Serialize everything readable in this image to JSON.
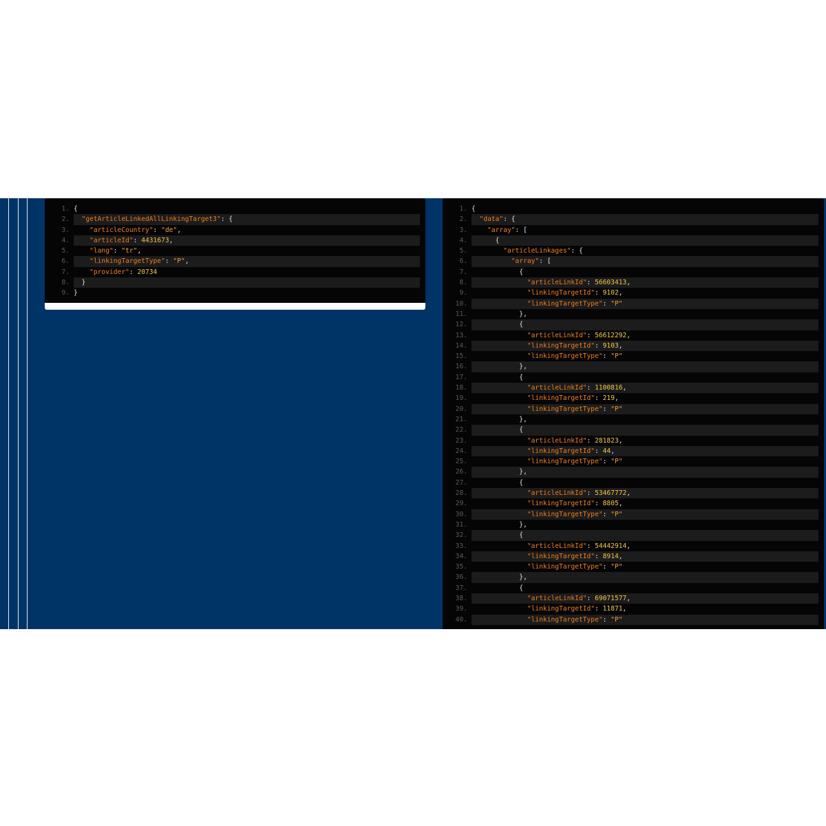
{
  "left_panel": {
    "lines": [
      {
        "number": "1.",
        "code": "{"
      },
      {
        "number": "2.",
        "code": "  \"getArticleLinkedAllLinkingTarget3\": {"
      },
      {
        "number": "3.",
        "code": "    \"articleCountry\": \"de\","
      },
      {
        "number": "4.",
        "code": "    \"articleId\": 4431673,"
      },
      {
        "number": "5.",
        "code": "    \"lang\": \"tr\","
      },
      {
        "number": "6.",
        "code": "    \"linkingTargetType\": \"P\","
      },
      {
        "number": "7.",
        "code": "    \"provider\": 20734"
      },
      {
        "number": "8.",
        "code": "  }"
      },
      {
        "number": "9.",
        "code": "}"
      }
    ]
  },
  "right_panel": {
    "lines": [
      {
        "number": "1.",
        "code": "{"
      },
      {
        "number": "2.",
        "code": "  \"data\": {"
      },
      {
        "number": "3.",
        "code": "    \"array\": ["
      },
      {
        "number": "4.",
        "code": "      {"
      },
      {
        "number": "5.",
        "code": "        \"articleLinkages\": {"
      },
      {
        "number": "6.",
        "code": "          \"array\": ["
      },
      {
        "number": "7.",
        "code": "            {"
      },
      {
        "number": "8.",
        "code": "              \"articleLinkId\": 56603413,"
      },
      {
        "number": "9.",
        "code": "              \"linkingTargetId\": 9102,"
      },
      {
        "number": "10.",
        "code": "              \"linkingTargetType\": \"P\""
      },
      {
        "number": "11.",
        "code": "            },"
      },
      {
        "number": "12.",
        "code": "            {"
      },
      {
        "number": "13.",
        "code": "              \"articleLinkId\": 56612292,"
      },
      {
        "number": "14.",
        "code": "              \"linkingTargetId\": 9103,"
      },
      {
        "number": "15.",
        "code": "              \"linkingTargetType\": \"P\""
      },
      {
        "number": "16.",
        "code": "            },"
      },
      {
        "number": "17.",
        "code": "            {"
      },
      {
        "number": "18.",
        "code": "              \"articleLinkId\": 1100816,"
      },
      {
        "number": "19.",
        "code": "              \"linkingTargetId\": 219,"
      },
      {
        "number": "20.",
        "code": "              \"linkingTargetType\": \"P\""
      },
      {
        "number": "21.",
        "code": "            },"
      },
      {
        "number": "22.",
        "code": "            {"
      },
      {
        "number": "23.",
        "code": "              \"articleLinkId\": 281823,"
      },
      {
        "number": "24.",
        "code": "              \"linkingTargetId\": 44,"
      },
      {
        "number": "25.",
        "code": "              \"linkingTargetType\": \"P\""
      },
      {
        "number": "26.",
        "code": "            },"
      },
      {
        "number": "27.",
        "code": "            {"
      },
      {
        "number": "28.",
        "code": "              \"articleLinkId\": 53467772,"
      },
      {
        "number": "29.",
        "code": "              \"linkingTargetId\": 8805,"
      },
      {
        "number": "30.",
        "code": "              \"linkingTargetType\": \"P\""
      },
      {
        "number": "31.",
        "code": "            },"
      },
      {
        "number": "32.",
        "code": "            {"
      },
      {
        "number": "33.",
        "code": "              \"articleLinkId\": 54442914,"
      },
      {
        "number": "34.",
        "code": "              \"linkingTargetId\": 8914,"
      },
      {
        "number": "35.",
        "code": "              \"linkingTargetType\": \"P\""
      },
      {
        "number": "36.",
        "code": "            },"
      },
      {
        "number": "37.",
        "code": "            {"
      },
      {
        "number": "38.",
        "code": "              \"articleLinkId\": 69071577,"
      },
      {
        "number": "39.",
        "code": "              \"linkingTargetId\": 11871,"
      },
      {
        "number": "40.",
        "code": "              \"linkingTargetType\": \"P\""
      }
    ]
  }
}
